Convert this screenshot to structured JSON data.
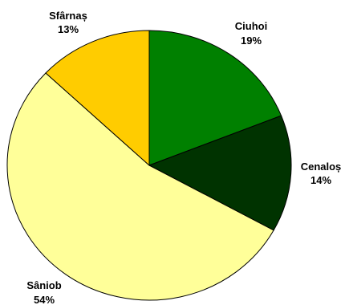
{
  "chart_data": {
    "type": "pie",
    "title": "",
    "slices": [
      {
        "label": "Ciuhoi",
        "value": 19,
        "value_label": "19%",
        "color": "#008000"
      },
      {
        "label": "Cenaloș",
        "value": 14,
        "value_label": "14%",
        "color": "#003300"
      },
      {
        "label": "Sâniob",
        "value": 54,
        "value_label": "54%",
        "color": "#FFFF99"
      },
      {
        "label": "Sfârnaș",
        "value": 13,
        "value_label": "13%",
        "color": "#FFCC00"
      }
    ],
    "legend": "none"
  }
}
